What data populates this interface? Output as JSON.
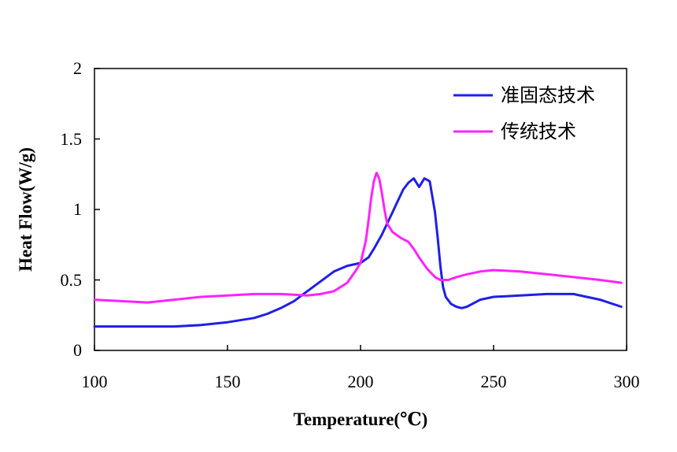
{
  "chart_data": {
    "type": "line",
    "xlabel": "Temperature(℃)",
    "ylabel": "Heat Flow(W/g)",
    "xlim": [
      100,
      300
    ],
    "ylim": [
      0,
      2
    ],
    "x_ticks": [
      "100",
      "150",
      "200",
      "250",
      "300"
    ],
    "y_ticks": [
      "0",
      "0.5",
      "1",
      "1.5",
      "2"
    ],
    "legend_position": "top-right",
    "grid": false,
    "series": [
      {
        "name": "准固态技术",
        "color": "#1f1fe6",
        "x": [
          100,
          110,
          120,
          130,
          140,
          150,
          160,
          165,
          170,
          175,
          180,
          185,
          190,
          195,
          200,
          203,
          205,
          208,
          210,
          212,
          214,
          216,
          218,
          220,
          222,
          224,
          226,
          228,
          229,
          230,
          231,
          232,
          234,
          236,
          238,
          240,
          245,
          250,
          260,
          270,
          280,
          290,
          298
        ],
        "y": [
          0.17,
          0.17,
          0.17,
          0.17,
          0.18,
          0.2,
          0.23,
          0.26,
          0.3,
          0.35,
          0.42,
          0.49,
          0.56,
          0.6,
          0.62,
          0.66,
          0.72,
          0.82,
          0.9,
          0.98,
          1.06,
          1.14,
          1.19,
          1.22,
          1.16,
          1.22,
          1.2,
          0.98,
          0.8,
          0.6,
          0.45,
          0.38,
          0.33,
          0.31,
          0.3,
          0.31,
          0.36,
          0.38,
          0.39,
          0.4,
          0.4,
          0.36,
          0.31
        ]
      },
      {
        "name": "传统技术",
        "color": "#ff22ff",
        "x": [
          100,
          110,
          120,
          130,
          140,
          150,
          160,
          170,
          180,
          185,
          190,
          195,
          198,
          200,
          202,
          203,
          204,
          205,
          206,
          207,
          208,
          209,
          210,
          212,
          215,
          218,
          220,
          222,
          225,
          228,
          230,
          233,
          236,
          240,
          245,
          250,
          260,
          270,
          280,
          290,
          298
        ],
        "y": [
          0.36,
          0.35,
          0.34,
          0.36,
          0.38,
          0.39,
          0.4,
          0.4,
          0.39,
          0.4,
          0.42,
          0.48,
          0.56,
          0.62,
          0.78,
          0.92,
          1.08,
          1.2,
          1.26,
          1.22,
          1.12,
          1.0,
          0.9,
          0.84,
          0.8,
          0.77,
          0.72,
          0.66,
          0.58,
          0.52,
          0.5,
          0.5,
          0.52,
          0.54,
          0.56,
          0.57,
          0.56,
          0.54,
          0.52,
          0.5,
          0.48
        ]
      }
    ]
  }
}
